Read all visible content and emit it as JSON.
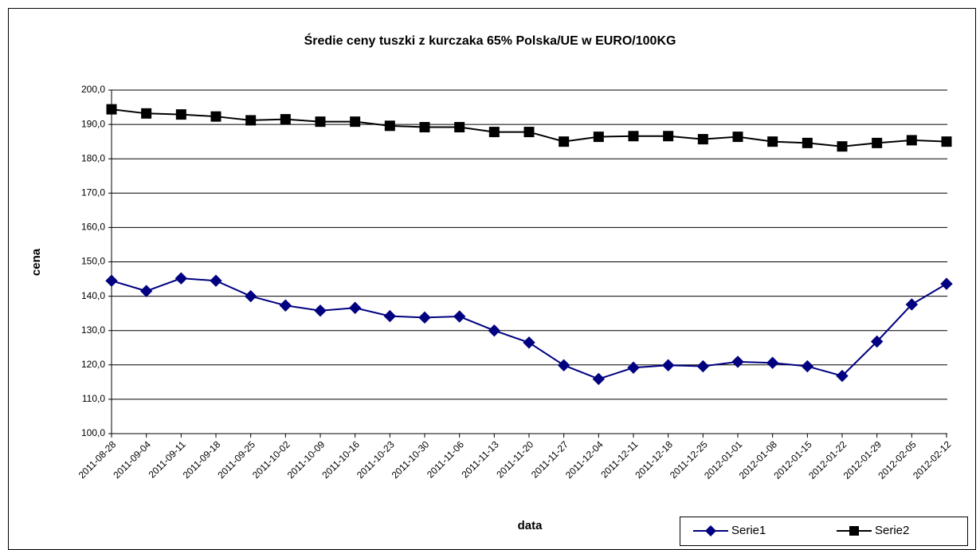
{
  "chart_data": {
    "type": "line",
    "title": "Średie ceny tuszki z kurczaka 65% Polska/UE w EURO/100KG",
    "xlabel": "data",
    "ylabel": "cena",
    "categories": [
      "2011-08-28",
      "2011-09-04",
      "2011-09-11",
      "2011-09-18",
      "2011-09-25",
      "2011-10-02",
      "2011-10-09",
      "2011-10-16",
      "2011-10-23",
      "2011-10-30",
      "2011-11-06",
      "2011-11-13",
      "2011-11-20",
      "2011-11-27",
      "2011-12-04",
      "2011-12-11",
      "2011-12-18",
      "2011-12-25",
      "2012-01-01",
      "2012-01-08",
      "2012-01-15",
      "2012-01-22",
      "2012-01-29",
      "2012-02-05",
      "2012-02-12"
    ],
    "series": [
      {
        "name": "Serie1",
        "color": "#000080",
        "marker": "diamond",
        "values": [
          144.5,
          141.5,
          145.2,
          144.5,
          140.0,
          137.3,
          135.8,
          136.6,
          134.2,
          133.8,
          134.1,
          130.0,
          126.5,
          119.9,
          115.9,
          119.2,
          119.9,
          119.6,
          120.9,
          120.6,
          119.6,
          116.8,
          126.8,
          137.6,
          143.6
        ]
      },
      {
        "name": "Serie2",
        "color": "#000000",
        "marker": "square",
        "values": [
          194.4,
          193.2,
          192.9,
          192.3,
          191.2,
          191.5,
          190.8,
          190.8,
          189.6,
          189.2,
          189.2,
          187.8,
          187.8,
          185.0,
          186.4,
          186.6,
          186.6,
          185.7,
          186.4,
          185.0,
          184.6,
          183.6,
          184.6,
          185.4,
          185.0
        ]
      }
    ],
    "ylim": [
      100,
      200
    ],
    "yticks": [
      {
        "value": 100,
        "label": "100,0"
      },
      {
        "value": 110,
        "label": "110,0"
      },
      {
        "value": 120,
        "label": "120,0"
      },
      {
        "value": 130,
        "label": "130,0"
      },
      {
        "value": 140,
        "label": "140,0"
      },
      {
        "value": 150,
        "label": "150,0"
      },
      {
        "value": 160,
        "label": "160,0"
      },
      {
        "value": 170,
        "label": "170,0"
      },
      {
        "value": 180,
        "label": "180,0"
      },
      {
        "value": 190,
        "label": "190,0"
      },
      {
        "value": 200,
        "label": "200,0"
      }
    ],
    "grid": true,
    "legend": "bottom-right"
  }
}
